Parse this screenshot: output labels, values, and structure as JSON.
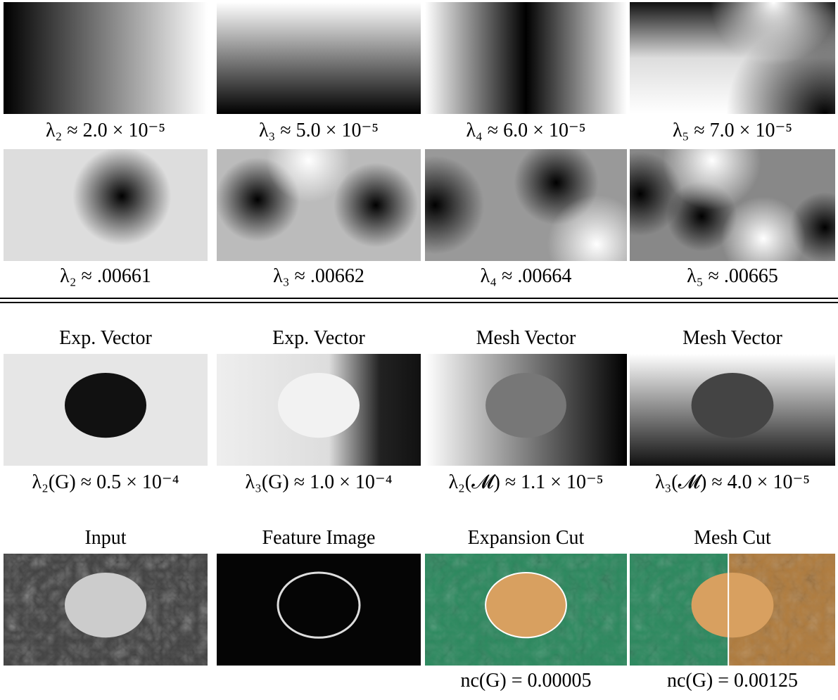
{
  "rows": [
    {
      "panels": [
        {
          "caption": "λ₂ ≈ 2.0 × 10⁻⁵"
        },
        {
          "caption": "λ₃ ≈ 5.0 × 10⁻⁵"
        },
        {
          "caption": "λ₄ ≈ 6.0 × 10⁻⁵"
        },
        {
          "caption": "λ₅ ≈ 7.0 × 10⁻⁵"
        }
      ]
    },
    {
      "panels": [
        {
          "caption": "λ₂ ≈ .00661"
        },
        {
          "caption": "λ₃ ≈ .00662"
        },
        {
          "caption": "λ₄ ≈ .00664"
        },
        {
          "caption": "λ₅ ≈ .00665"
        }
      ]
    },
    {
      "panels": [
        {
          "header": "Exp. Vector",
          "caption": "λ₂(G) ≈ 0.5 × 10⁻⁴"
        },
        {
          "header": "Exp. Vector",
          "caption": "λ₃(G) ≈ 1.0 × 10⁻⁴"
        },
        {
          "header": "Mesh Vector",
          "caption": "λ₂(𝓜) ≈ 1.1 × 10⁻⁵"
        },
        {
          "header": "Mesh Vector",
          "caption": "λ₃(𝓜) ≈ 4.0 × 10⁻⁵"
        }
      ]
    },
    {
      "panels": [
        {
          "header": "Input"
        },
        {
          "header": "Feature Image"
        },
        {
          "header": "Expansion Cut",
          "caption": "nc(G) = 0.00005"
        },
        {
          "header": "Mesh Cut",
          "caption": "nc(G) = 0.00125"
        }
      ]
    }
  ]
}
